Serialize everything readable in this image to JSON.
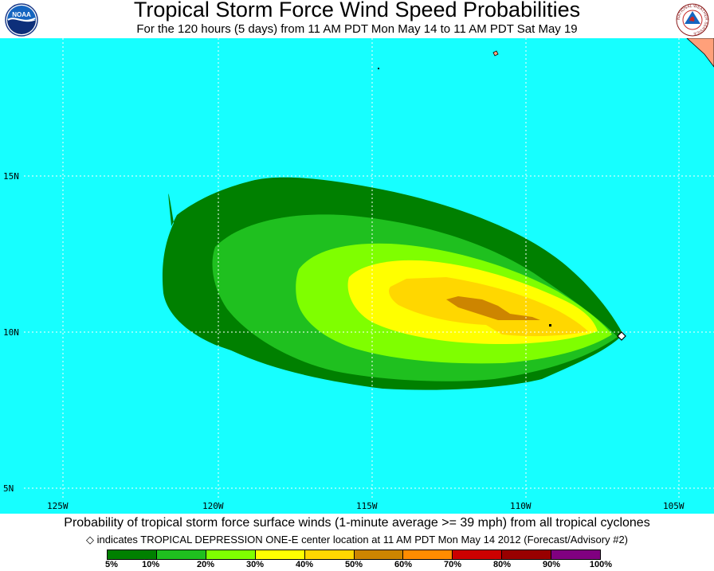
{
  "header": {
    "title": "Tropical Storm Force Wind Speed Probabilities",
    "subtitle": "For the 120 hours (5 days) from 11 AM PDT Mon May 14 to 11 AM PDT Sat May 19",
    "left_logo_text": "NOAA",
    "right_logo_text": "NATIONAL WEATHER SERVICE"
  },
  "map": {
    "ocean_color": "#16ffff",
    "land_color": "#ffa07a",
    "lat_labels": [
      "15N",
      "10N",
      "5N"
    ],
    "lon_labels": [
      "125W",
      "120W",
      "115W",
      "110W",
      "105W"
    ],
    "probability_color_order": [
      "5%",
      "10%",
      "20%",
      "30%",
      "40%",
      "50%",
      "60%"
    ],
    "storm_center_marker": "white-diamond"
  },
  "caption": "Probability of tropical storm force surface winds (1-minute average >= 39 mph) from all tropical cyclones",
  "marker_note": {
    "symbol": "◇",
    "text": "indicates TROPICAL DEPRESSION ONE-E center location at 11 AM PDT Mon May 14 2012 (Forecast/Advisory #2)"
  },
  "legend": {
    "colors": [
      "#008000",
      "#1fc01f",
      "#7fff00",
      "#ffff00",
      "#ffd700",
      "#cd8500",
      "#ff8c00",
      "#cc0000",
      "#990000",
      "#800080"
    ],
    "labels": [
      "5%",
      "10%",
      "20%",
      "30%",
      "40%",
      "50%",
      "60%",
      "70%",
      "80%",
      "90%",
      "100%"
    ]
  }
}
